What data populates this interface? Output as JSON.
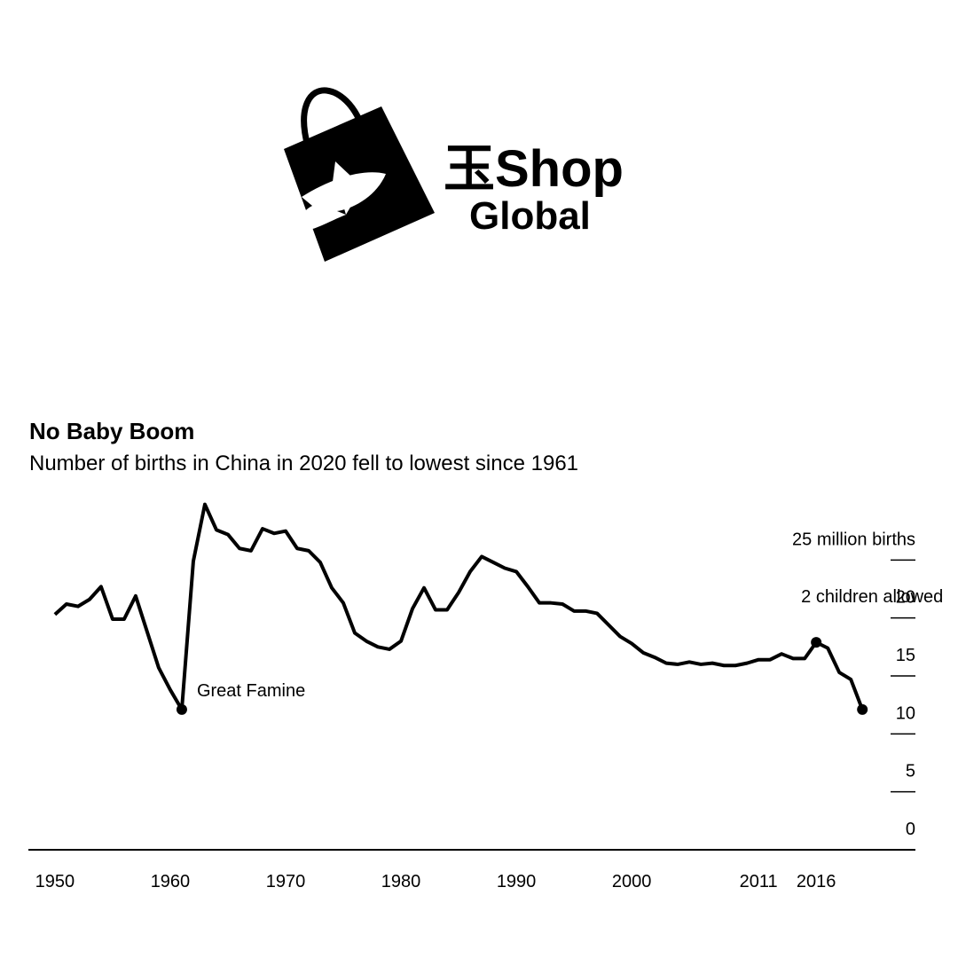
{
  "logo": {
    "line1": "玉Shop",
    "line2": "Global"
  },
  "chart_data": {
    "type": "line",
    "title": "No Baby Boom",
    "subtitle": "Number of births in China in 2020 fell to lowest since 1961",
    "x": [
      1950,
      1951,
      1952,
      1953,
      1954,
      1955,
      1956,
      1957,
      1958,
      1959,
      1960,
      1961,
      1962,
      1963,
      1964,
      1965,
      1966,
      1967,
      1968,
      1969,
      1970,
      1971,
      1972,
      1973,
      1974,
      1975,
      1976,
      1977,
      1978,
      1979,
      1980,
      1981,
      1982,
      1983,
      1984,
      1985,
      1986,
      1987,
      1988,
      1989,
      1990,
      1991,
      1992,
      1993,
      1994,
      1995,
      1996,
      1997,
      1998,
      1999,
      2000,
      2001,
      2002,
      2003,
      2004,
      2005,
      2006,
      2007,
      2008,
      2009,
      2010,
      2011,
      2012,
      2013,
      2014,
      2015,
      2016,
      2017,
      2018,
      2019,
      2020
    ],
    "series": [
      {
        "name": "Births",
        "color": "#000000",
        "values": [
          20.3,
          21.2,
          21.0,
          21.6,
          22.7,
          19.9,
          19.9,
          21.9,
          18.8,
          15.7,
          13.8,
          12.1,
          24.9,
          29.8,
          27.6,
          27.2,
          26.0,
          25.8,
          27.7,
          27.3,
          27.5,
          26.0,
          25.8,
          24.8,
          22.6,
          21.3,
          18.7,
          18.0,
          17.5,
          17.3,
          18.0,
          20.8,
          22.6,
          20.7,
          20.7,
          22.2,
          24.0,
          25.3,
          24.8,
          24.3,
          24.0,
          22.7,
          21.3,
          21.3,
          21.2,
          20.6,
          20.6,
          20.4,
          19.4,
          18.4,
          17.8,
          17.0,
          16.6,
          16.1,
          16.0,
          16.2,
          16.0,
          16.1,
          15.9,
          15.9,
          16.1,
          16.4,
          16.4,
          16.9,
          16.5,
          16.5,
          17.9,
          17.4,
          15.3,
          14.7,
          12.1
        ]
      }
    ],
    "markers": [
      1961,
      2016,
      2020
    ],
    "annotations": [
      {
        "text": "Great Famine",
        "x": 1961
      },
      {
        "text": "2 children allowed",
        "x": 2016
      }
    ],
    "xlim": [
      1947.7,
      2024.6
    ],
    "xticks": [
      1950,
      1960,
      1970,
      1980,
      1990,
      2000,
      2011,
      2016
    ],
    "ylim": [
      0,
      30
    ],
    "yticks": [
      0,
      5,
      10,
      15,
      20,
      {
        "value": 25,
        "label": "25 million births"
      }
    ]
  }
}
